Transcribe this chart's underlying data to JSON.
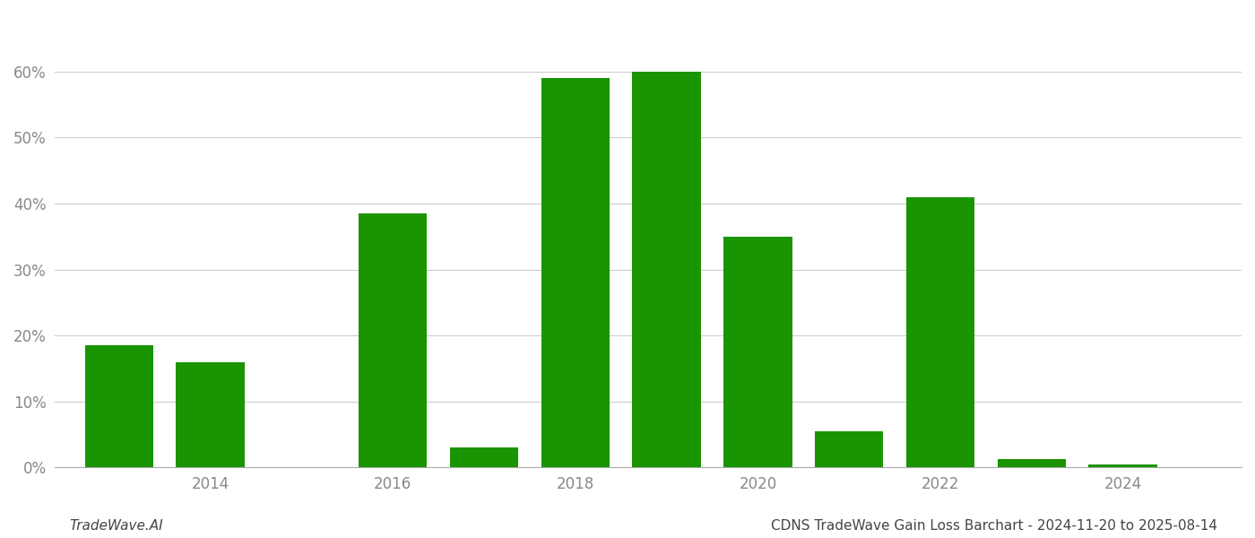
{
  "years": [
    2013,
    2014,
    2016,
    2017,
    2018,
    2019,
    2020,
    2021,
    2022,
    2023,
    2024
  ],
  "values": [
    0.185,
    0.16,
    0.385,
    0.03,
    0.59,
    0.6,
    0.35,
    0.055,
    0.41,
    0.012,
    0.005
  ],
  "bar_color": "#1a9400",
  "background_color": "#ffffff",
  "grid_color": "#cccccc",
  "yticks": [
    0.0,
    0.1,
    0.2,
    0.3,
    0.4,
    0.5,
    0.6
  ],
  "xtick_labels": [
    "2014",
    "2016",
    "2018",
    "2020",
    "2022",
    "2024"
  ],
  "xtick_positions": [
    2014,
    2016,
    2018,
    2020,
    2022,
    2024
  ],
  "footer_left": "TradeWave.AI",
  "footer_right": "CDNS TradeWave Gain Loss Barchart - 2024-11-20 to 2025-08-14",
  "footer_fontsize": 11,
  "ylim": [
    0,
    0.68
  ],
  "bar_width": 0.75,
  "xlim": [
    2012.3,
    2025.3
  ]
}
